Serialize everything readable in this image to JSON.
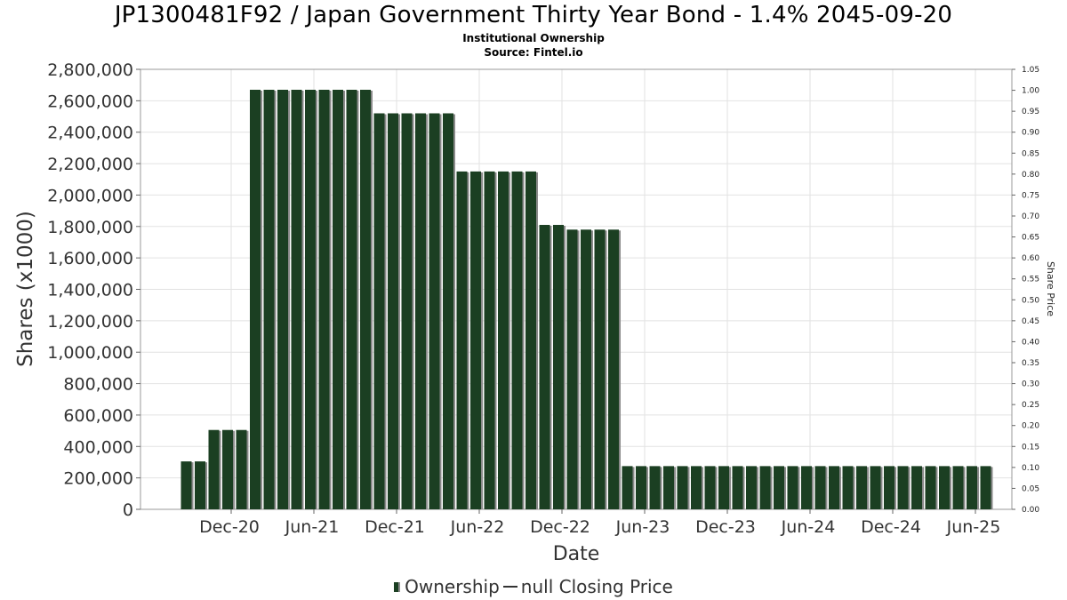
{
  "header": {
    "title": "JP1300481F92 / Japan Government Thirty Year Bond - 1.4% 2045-09-20",
    "subtitle": "Institutional Ownership",
    "source": "Source: Fintel.io"
  },
  "legend": {
    "ownership_label": "Ownership",
    "price_label": "null Closing Price"
  },
  "colors": {
    "bar": "#1b3f22",
    "bar_shadow": "#8a8a8a",
    "grid": "#e2e2e2",
    "axis": "#666666"
  },
  "chart_data": {
    "type": "bar",
    "xlabel": "Date",
    "ylabel": "Shares (x1000)",
    "y2label": "Share Price",
    "ylim": [
      0,
      2800000
    ],
    "y2lim": [
      0,
      1.05
    ],
    "yticks": [
      "0",
      "200,000",
      "400,000",
      "600,000",
      "800,000",
      "1,000,000",
      "1,200,000",
      "1,400,000",
      "1,600,000",
      "1,800,000",
      "2,000,000",
      "2,200,000",
      "2,400,000",
      "2,600,000",
      "2,800,000"
    ],
    "y2ticks": [
      "0.00",
      "0.05",
      "0.10",
      "0.15",
      "0.20",
      "0.25",
      "0.30",
      "0.35",
      "0.40",
      "0.45",
      "0.50",
      "0.55",
      "0.60",
      "0.65",
      "0.70",
      "0.75",
      "0.80",
      "0.85",
      "0.90",
      "0.95",
      "1.00",
      "1.05"
    ],
    "xticks": [
      "Dec-20",
      "Jun-21",
      "Dec-21",
      "Jun-22",
      "Dec-22",
      "Jun-23",
      "Dec-23",
      "Jun-24",
      "Dec-24",
      "Jun-25"
    ],
    "x_start": "2020-09",
    "interval": "monthly",
    "grid": true,
    "legend_position": "bottom-center",
    "series": [
      {
        "name": "Ownership",
        "values": [
          305000,
          305000,
          505000,
          505000,
          505000,
          2670000,
          2670000,
          2670000,
          2670000,
          2670000,
          2670000,
          2670000,
          2670000,
          2670000,
          2520000,
          2520000,
          2520000,
          2520000,
          2520000,
          2520000,
          2150000,
          2150000,
          2150000,
          2150000,
          2150000,
          2150000,
          1810000,
          1810000,
          1780000,
          1780000,
          1780000,
          1780000,
          275000,
          275000,
          275000,
          275000,
          275000,
          275000,
          275000,
          275000,
          275000,
          275000,
          275000,
          275000,
          275000,
          275000,
          275000,
          275000,
          275000,
          275000,
          275000,
          275000,
          275000,
          275000,
          275000,
          275000,
          275000,
          275000,
          275000
        ]
      }
    ]
  }
}
